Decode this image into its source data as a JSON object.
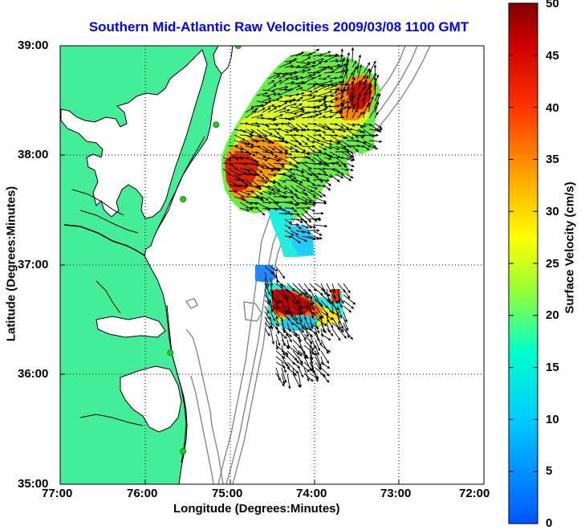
{
  "title": "Southern Mid-Atlantic Raw Velocities 2009/03/08 1100 GMT",
  "xlabel": "Longitude (Degrees:Minutes)",
  "ylabel": "Latitude (Degrees:Minutes)",
  "colorbar": {
    "label": "Surface Velocity (cm/s)",
    "ticks": [
      "0",
      "5",
      "10",
      "15",
      "20",
      "25",
      "30",
      "35",
      "40",
      "45",
      "50"
    ],
    "range": [
      0,
      50
    ],
    "colormap": "jet"
  },
  "x_ticks": [
    "77:00",
    "76:00",
    "75:00",
    "74:00",
    "73:00",
    "72:00"
  ],
  "y_ticks": [
    "39:00",
    "38:00",
    "37:00",
    "36:00",
    "35:00"
  ],
  "colors": {
    "land": "#44ee99",
    "coastline": "#000000",
    "bathymetry": "#888888",
    "title": "#0000ff",
    "station": "#22cc22"
  },
  "chart_data": {
    "type": "map",
    "map_extent": {
      "lon": [
        -77,
        -72
      ],
      "lat": [
        35,
        39
      ]
    },
    "grid": true,
    "stations": [
      {
        "lon": -74.9,
        "lat": 39.0
      },
      {
        "lon": -75.16,
        "lat": 38.28
      },
      {
        "lon": -75.55,
        "lat": 37.6
      },
      {
        "lon": -75.7,
        "lat": 36.2
      },
      {
        "lon": -75.55,
        "lat": 35.3
      }
    ]
  }
}
